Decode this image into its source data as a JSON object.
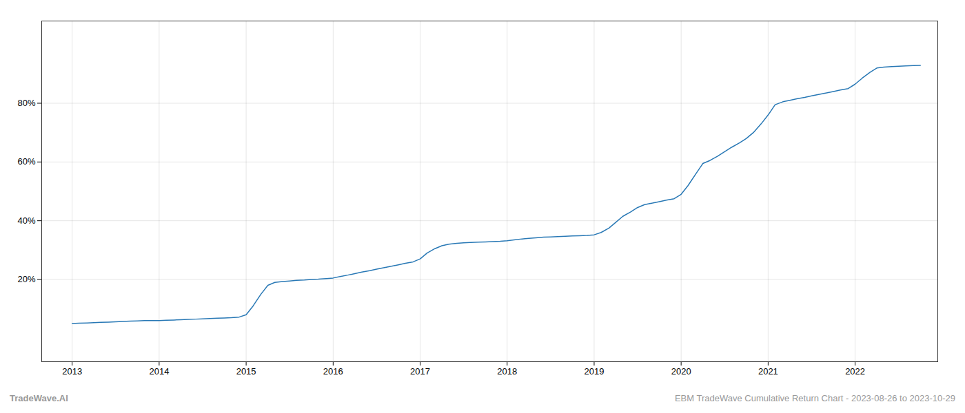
{
  "chart_data": {
    "type": "line",
    "annotations": [
      "TradeWave.AI",
      "EBM TradeWave Cumulative Return Chart - 2023-08-26 to 2023-10-29"
    ],
    "color": "#2878b5",
    "x": [
      2013.0,
      2013.08,
      2013.17,
      2013.25,
      2013.33,
      2013.42,
      2013.5,
      2013.58,
      2013.67,
      2013.75,
      2013.83,
      2013.92,
      2014.0,
      2014.08,
      2014.17,
      2014.25,
      2014.33,
      2014.42,
      2014.5,
      2014.58,
      2014.67,
      2014.75,
      2014.83,
      2014.92,
      2015.0,
      2015.08,
      2015.17,
      2015.25,
      2015.33,
      2015.42,
      2015.5,
      2015.58,
      2015.67,
      2015.75,
      2015.83,
      2015.92,
      2016.0,
      2016.08,
      2016.17,
      2016.25,
      2016.33,
      2016.42,
      2016.5,
      2016.58,
      2016.67,
      2016.75,
      2016.83,
      2016.92,
      2017.0,
      2017.08,
      2017.17,
      2017.25,
      2017.33,
      2017.42,
      2017.5,
      2017.58,
      2017.67,
      2017.75,
      2017.83,
      2017.92,
      2018.0,
      2018.08,
      2018.17,
      2018.25,
      2018.33,
      2018.42,
      2018.5,
      2018.58,
      2018.67,
      2018.75,
      2018.83,
      2018.92,
      2019.0,
      2019.08,
      2019.17,
      2019.25,
      2019.33,
      2019.42,
      2019.5,
      2019.58,
      2019.67,
      2019.75,
      2019.83,
      2019.92,
      2020.0,
      2020.08,
      2020.17,
      2020.25,
      2020.33,
      2020.42,
      2020.5,
      2020.58,
      2020.67,
      2020.75,
      2020.83,
      2020.92,
      2021.0,
      2021.08,
      2021.17,
      2021.25,
      2021.33,
      2021.42,
      2021.5,
      2021.58,
      2021.67,
      2021.75,
      2021.83,
      2021.92,
      2022.0,
      2022.08,
      2022.17,
      2022.25,
      2022.33,
      2022.42,
      2022.5,
      2022.58,
      2022.67,
      2022.75
    ],
    "values": [
      5.0,
      5.1,
      5.2,
      5.3,
      5.4,
      5.5,
      5.6,
      5.7,
      5.8,
      5.9,
      6.0,
      6.0,
      6.0,
      6.1,
      6.2,
      6.3,
      6.4,
      6.5,
      6.6,
      6.7,
      6.8,
      6.9,
      7.0,
      7.2,
      8.0,
      11.0,
      15.0,
      18.0,
      19.0,
      19.3,
      19.5,
      19.7,
      19.8,
      20.0,
      20.1,
      20.3,
      20.5,
      21.0,
      21.5,
      22.0,
      22.5,
      23.0,
      23.5,
      24.0,
      24.5,
      25.0,
      25.5,
      26.0,
      27.0,
      29.0,
      30.5,
      31.5,
      32.0,
      32.3,
      32.5,
      32.6,
      32.7,
      32.8,
      32.9,
      33.0,
      33.2,
      33.5,
      33.8,
      34.0,
      34.2,
      34.4,
      34.5,
      34.6,
      34.7,
      34.8,
      34.9,
      35.0,
      35.2,
      36.0,
      37.5,
      39.5,
      41.5,
      43.0,
      44.5,
      45.5,
      46.0,
      46.5,
      47.0,
      47.5,
      49.0,
      52.0,
      56.0,
      59.5,
      60.5,
      62.0,
      63.5,
      65.0,
      66.5,
      68.0,
      70.0,
      73.0,
      76.0,
      79.5,
      80.5,
      81.0,
      81.5,
      82.0,
      82.5,
      83.0,
      83.5,
      84.0,
      84.5,
      85.0,
      86.5,
      88.5,
      90.5,
      92.0,
      92.3,
      92.5,
      92.6,
      92.7,
      92.8,
      92.9
    ],
    "xlim": [
      2012.65,
      2022.95
    ],
    "ylim": [
      -8,
      108
    ],
    "xticks": [
      2013,
      2014,
      2015,
      2016,
      2017,
      2018,
      2019,
      2020,
      2021,
      2022
    ],
    "yticks": [
      {
        "value": 20,
        "label": "20%"
      },
      {
        "value": 40,
        "label": "40%"
      },
      {
        "value": 60,
        "label": "60%"
      },
      {
        "value": 80,
        "label": "80%"
      }
    ],
    "grid": true
  }
}
